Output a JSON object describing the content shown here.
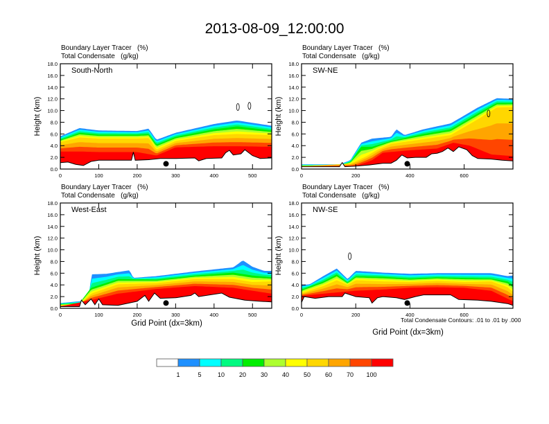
{
  "figure_title": "2013-08-09_12:00:00",
  "panel_title_line1": "Boundary Layer Tracer   (%)",
  "panel_title_line2": "Total Condensate   (g/kg)",
  "xaxis_label": "Grid Point (dx=3km)",
  "yaxis_label": "Height (km)",
  "contour_note": "Total Condensate Contours: .01 to .01 by .000",
  "chart_data": [
    {
      "type": "heatmap",
      "panel": "top-left",
      "label": "South-North",
      "xlabel": "",
      "ylabel": "Height (km)",
      "xlim": [
        0,
        550
      ],
      "ylim": [
        0,
        18
      ],
      "xticks": [
        0,
        100,
        200,
        300,
        400,
        500
      ],
      "yticks": [
        0.0,
        2.0,
        4.0,
        6.0,
        8.0,
        10.0,
        12.0,
        14.0,
        16.0,
        18.0
      ],
      "marker": {
        "x": 275,
        "y": 0.9
      },
      "terrain": [
        [
          0,
          1.1
        ],
        [
          20,
          1.2
        ],
        [
          40,
          0.8
        ],
        [
          60,
          0.6
        ],
        [
          80,
          1.3
        ],
        [
          100,
          1.5
        ],
        [
          150,
          1.5
        ],
        [
          185,
          1.5
        ],
        [
          190,
          2.9
        ],
        [
          195,
          1.5
        ],
        [
          230,
          1.6
        ],
        [
          260,
          1.8
        ],
        [
          300,
          1.8
        ],
        [
          350,
          1.9
        ],
        [
          360,
          1.4
        ],
        [
          380,
          1.8
        ],
        [
          420,
          1.9
        ],
        [
          430,
          2.8
        ],
        [
          440,
          3.2
        ],
        [
          450,
          2.4
        ],
        [
          470,
          2.6
        ],
        [
          480,
          3.3
        ],
        [
          500,
          2.3
        ],
        [
          520,
          1.8
        ],
        [
          550,
          1.9
        ]
      ],
      "top_levels_km": {
        "1": [
          [
            0,
            5.6
          ],
          [
            50,
            7.0
          ],
          [
            100,
            6.6
          ],
          [
            200,
            6.5
          ],
          [
            230,
            6.9
          ],
          [
            250,
            5.0
          ],
          [
            300,
            6.2
          ],
          [
            400,
            7.7
          ],
          [
            460,
            8.3
          ],
          [
            550,
            7.4
          ]
        ],
        "20": [
          [
            0,
            5.0
          ],
          [
            50,
            6.2
          ],
          [
            100,
            5.9
          ],
          [
            200,
            5.9
          ],
          [
            230,
            6.0
          ],
          [
            250,
            4.2
          ],
          [
            300,
            5.5
          ],
          [
            400,
            6.8
          ],
          [
            460,
            7.3
          ],
          [
            550,
            6.6
          ]
        ],
        "50": [
          [
            0,
            4.6
          ],
          [
            50,
            5.4
          ],
          [
            100,
            5.2
          ],
          [
            200,
            5.2
          ],
          [
            230,
            5.3
          ],
          [
            250,
            3.3
          ],
          [
            300,
            4.8
          ],
          [
            400,
            5.8
          ],
          [
            460,
            6.0
          ],
          [
            550,
            5.8
          ]
        ],
        "100": [
          [
            0,
            3.0
          ],
          [
            50,
            3.0
          ],
          [
            100,
            2.9
          ],
          [
            200,
            2.9
          ],
          [
            250,
            2.3
          ],
          [
            300,
            3.7
          ],
          [
            400,
            3.9
          ],
          [
            460,
            3.9
          ],
          [
            550,
            3.8
          ]
        ]
      },
      "contours": [
        {
          "x": 462,
          "y": 10.6
        },
        {
          "x": 492,
          "y": 10.8
        }
      ]
    },
    {
      "type": "heatmap",
      "panel": "top-right",
      "label": "SW-NE",
      "xlabel": "",
      "ylabel": "Height (km)",
      "xlim": [
        0,
        780
      ],
      "ylim": [
        0,
        18
      ],
      "xticks": [
        0,
        200,
        400,
        600
      ],
      "yticks": [
        0.0,
        2.0,
        4.0,
        6.0,
        8.0,
        10.0,
        12.0,
        14.0,
        16.0,
        18.0
      ],
      "marker": {
        "x": 390,
        "y": 0.9
      },
      "terrain": [
        [
          0,
          0.4
        ],
        [
          100,
          0.4
        ],
        [
          140,
          0.4
        ],
        [
          150,
          1.1
        ],
        [
          160,
          0.4
        ],
        [
          200,
          0.5
        ],
        [
          250,
          0.7
        ],
        [
          300,
          1.0
        ],
        [
          330,
          1.0
        ],
        [
          350,
          1.5
        ],
        [
          370,
          2.4
        ],
        [
          390,
          1.9
        ],
        [
          420,
          2.0
        ],
        [
          460,
          2.0
        ],
        [
          480,
          2.6
        ],
        [
          500,
          2.7
        ],
        [
          520,
          3.0
        ],
        [
          540,
          3.6
        ],
        [
          560,
          3.0
        ],
        [
          580,
          3.8
        ],
        [
          610,
          3.3
        ],
        [
          630,
          2.3
        ],
        [
          650,
          1.8
        ],
        [
          700,
          1.7
        ],
        [
          740,
          1.5
        ],
        [
          780,
          1.4
        ]
      ],
      "top_levels_km": {
        "1": [
          [
            0,
            0.8
          ],
          [
            140,
            0.8
          ],
          [
            180,
            1.5
          ],
          [
            220,
            4.5
          ],
          [
            260,
            5.2
          ],
          [
            330,
            5.5
          ],
          [
            350,
            6.8
          ],
          [
            380,
            5.8
          ],
          [
            450,
            6.8
          ],
          [
            550,
            7.8
          ],
          [
            650,
            10.5
          ],
          [
            720,
            12.1
          ],
          [
            780,
            12.0
          ]
        ],
        "20": [
          [
            0,
            0.6
          ],
          [
            140,
            0.6
          ],
          [
            180,
            1.2
          ],
          [
            220,
            3.8
          ],
          [
            260,
            3.8
          ],
          [
            330,
            4.8
          ],
          [
            450,
            6.0
          ],
          [
            550,
            6.8
          ],
          [
            650,
            9.5
          ],
          [
            720,
            11.3
          ],
          [
            780,
            11.3
          ]
        ],
        "50": [
          [
            0,
            0.5
          ],
          [
            180,
            0.9
          ],
          [
            240,
            2.2
          ],
          [
            280,
            3.3
          ],
          [
            330,
            4.3
          ],
          [
            450,
            5.1
          ],
          [
            550,
            5.8
          ],
          [
            650,
            8.5
          ],
          [
            720,
            10.5
          ],
          [
            780,
            10.6
          ]
        ],
        "100": [
          [
            0,
            0.4
          ],
          [
            200,
            0.5
          ],
          [
            260,
            1.5
          ],
          [
            300,
            2.8
          ],
          [
            400,
            3.2
          ],
          [
            500,
            3.5
          ],
          [
            560,
            4.5
          ],
          [
            620,
            4.0
          ],
          [
            700,
            2.5
          ],
          [
            780,
            2.2
          ]
        ]
      },
      "contours": [
        {
          "x": 690,
          "y": 9.5
        }
      ]
    },
    {
      "type": "heatmap",
      "panel": "bottom-left",
      "label": "West-East",
      "xlabel": "Grid Point (dx=3km)",
      "ylabel": "Height (km)",
      "xlim": [
        0,
        550
      ],
      "ylim": [
        0,
        18
      ],
      "xticks": [
        0,
        100,
        200,
        300,
        400,
        500
      ],
      "yticks": [
        0.0,
        2.0,
        4.0,
        6.0,
        8.0,
        10.0,
        12.0,
        14.0,
        16.0,
        18.0
      ],
      "marker": {
        "x": 275,
        "y": 0.9
      },
      "terrain": [
        [
          0,
          0.3
        ],
        [
          50,
          0.3
        ],
        [
          55,
          1.4
        ],
        [
          65,
          0.6
        ],
        [
          80,
          1.6
        ],
        [
          90,
          0.6
        ],
        [
          100,
          1.6
        ],
        [
          110,
          0.6
        ],
        [
          150,
          0.5
        ],
        [
          200,
          1.2
        ],
        [
          220,
          2.2
        ],
        [
          230,
          1.2
        ],
        [
          245,
          2.6
        ],
        [
          260,
          1.7
        ],
        [
          300,
          1.8
        ],
        [
          340,
          2.2
        ],
        [
          350,
          2.6
        ],
        [
          360,
          2.0
        ],
        [
          420,
          2.6
        ],
        [
          440,
          1.9
        ],
        [
          480,
          1.4
        ],
        [
          520,
          1.2
        ],
        [
          550,
          1.1
        ]
      ],
      "top_levels_km": {
        "1": [
          [
            0,
            0.9
          ],
          [
            50,
            1.2
          ],
          [
            75,
            1.8
          ],
          [
            80,
            5.8
          ],
          [
            120,
            5.9
          ],
          [
            180,
            6.5
          ],
          [
            190,
            5.2
          ],
          [
            250,
            5.5
          ],
          [
            350,
            6.3
          ],
          [
            450,
            7.0
          ],
          [
            475,
            8.2
          ],
          [
            500,
            7.1
          ],
          [
            530,
            6.4
          ],
          [
            550,
            6.4
          ]
        ],
        "20": [
          [
            0,
            0.7
          ],
          [
            50,
            0.9
          ],
          [
            80,
            3.5
          ],
          [
            150,
            5.0
          ],
          [
            250,
            4.9
          ],
          [
            350,
            5.6
          ],
          [
            450,
            6.1
          ],
          [
            500,
            5.6
          ],
          [
            550,
            5.3
          ]
        ],
        "50": [
          [
            0,
            0.5
          ],
          [
            50,
            0.6
          ],
          [
            80,
            2.5
          ],
          [
            150,
            4.1
          ],
          [
            250,
            4.3
          ],
          [
            350,
            5.0
          ],
          [
            450,
            5.0
          ],
          [
            500,
            4.5
          ],
          [
            550,
            4.6
          ]
        ],
        "100": [
          [
            0,
            0.3
          ],
          [
            80,
            1.4
          ],
          [
            150,
            2.5
          ],
          [
            250,
            3.3
          ],
          [
            350,
            3.8
          ],
          [
            450,
            3.5
          ],
          [
            550,
            2.5
          ]
        ]
      },
      "contours": []
    },
    {
      "type": "heatmap",
      "panel": "bottom-right",
      "label": "NW-SE",
      "xlabel": "Grid Point (dx=3km)",
      "ylabel": "Height (km)",
      "xlim": [
        0,
        780
      ],
      "ylim": [
        0,
        18
      ],
      "xticks": [
        0,
        200,
        400,
        600
      ],
      "yticks": [
        0.0,
        2.0,
        4.0,
        6.0,
        8.0,
        10.0,
        12.0,
        14.0,
        16.0,
        18.0
      ],
      "marker": {
        "x": 390,
        "y": 0.9
      },
      "terrain": [
        [
          0,
          1.0
        ],
        [
          10,
          2.0
        ],
        [
          50,
          1.7
        ],
        [
          100,
          2.0
        ],
        [
          150,
          2.0
        ],
        [
          160,
          2.6
        ],
        [
          200,
          2.0
        ],
        [
          250,
          1.8
        ],
        [
          260,
          0.9
        ],
        [
          280,
          1.8
        ],
        [
          300,
          2.0
        ],
        [
          350,
          1.8
        ],
        [
          380,
          1.5
        ],
        [
          420,
          2.0
        ],
        [
          450,
          2.3
        ],
        [
          550,
          2.3
        ],
        [
          580,
          1.5
        ],
        [
          650,
          1.4
        ],
        [
          700,
          1.2
        ],
        [
          760,
          0.8
        ],
        [
          780,
          0.5
        ]
      ],
      "top_levels_km": {
        "1": [
          [
            0,
            4.0
          ],
          [
            30,
            4.1
          ],
          [
            80,
            5.5
          ],
          [
            130,
            6.8
          ],
          [
            170,
            5.0
          ],
          [
            200,
            6.4
          ],
          [
            300,
            6.1
          ],
          [
            400,
            5.9
          ],
          [
            500,
            6.0
          ],
          [
            600,
            6.0
          ],
          [
            700,
            6.0
          ],
          [
            760,
            5.5
          ],
          [
            780,
            5.6
          ]
        ],
        "20": [
          [
            0,
            3.2
          ],
          [
            80,
            4.6
          ],
          [
            130,
            5.8
          ],
          [
            170,
            4.4
          ],
          [
            200,
            5.5
          ],
          [
            300,
            5.4
          ],
          [
            400,
            5.1
          ],
          [
            500,
            5.3
          ],
          [
            600,
            5.2
          ],
          [
            700,
            5.1
          ],
          [
            760,
            4.6
          ],
          [
            780,
            4.0
          ]
        ],
        "50": [
          [
            0,
            2.6
          ],
          [
            80,
            3.8
          ],
          [
            130,
            4.8
          ],
          [
            170,
            4.0
          ],
          [
            200,
            4.8
          ],
          [
            300,
            4.6
          ],
          [
            400,
            4.5
          ],
          [
            500,
            4.7
          ],
          [
            600,
            4.5
          ],
          [
            700,
            4.6
          ],
          [
            760,
            3.6
          ],
          [
            780,
            2.8
          ]
        ],
        "100": [
          [
            0,
            2.1
          ],
          [
            80,
            2.5
          ],
          [
            200,
            3.0
          ],
          [
            300,
            3.2
          ],
          [
            400,
            3.5
          ],
          [
            500,
            3.6
          ],
          [
            600,
            3.5
          ],
          [
            700,
            3.0
          ],
          [
            780,
            1.2
          ]
        ]
      },
      "contours": [
        {
          "x": 178,
          "y": 8.9
        }
      ]
    }
  ],
  "colorbar": {
    "labels": [
      "1",
      "5",
      "10",
      "20",
      "30",
      "40",
      "50",
      "60",
      "70",
      "100"
    ],
    "colors": [
      "#ffffff",
      "#1e90ff",
      "#00ffff",
      "#00fa80",
      "#00ee00",
      "#adff2f",
      "#ffff00",
      "#ffd700",
      "#ffa500",
      "#ff4500",
      "#ff0000"
    ]
  }
}
